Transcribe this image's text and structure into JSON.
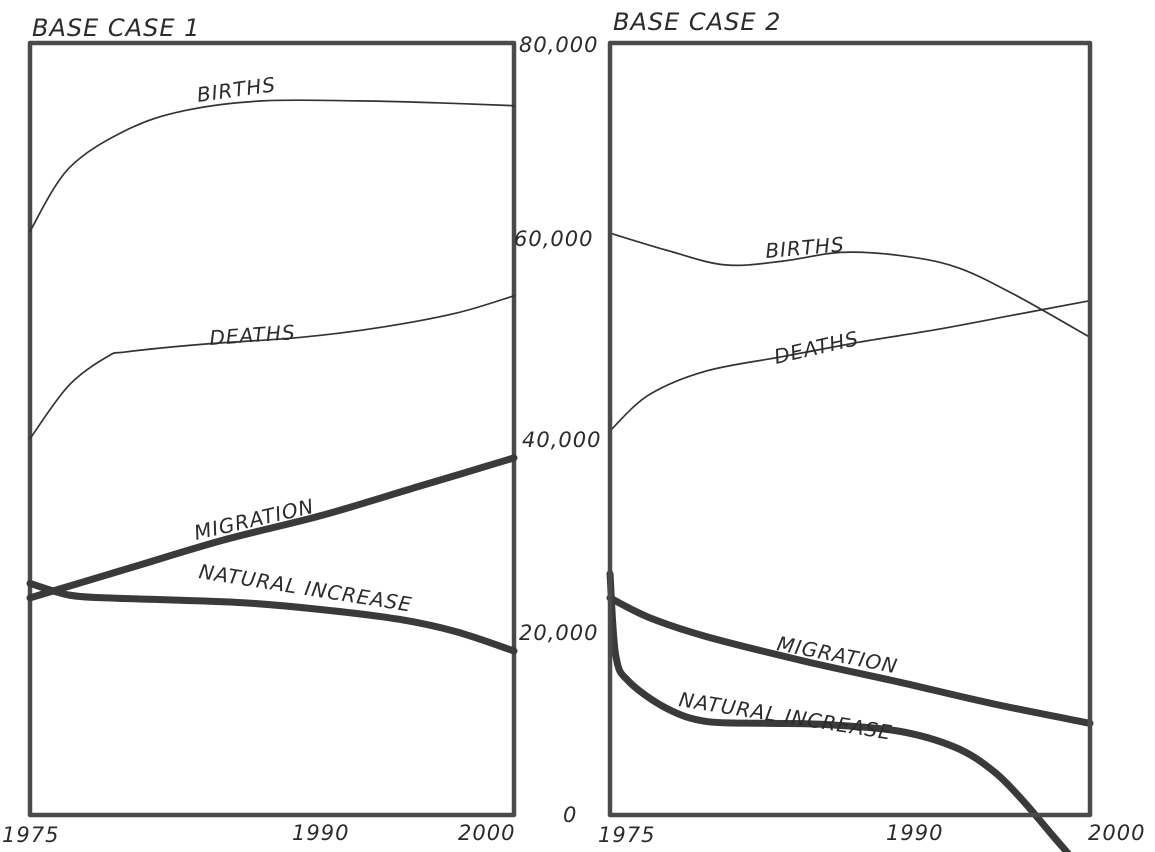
{
  "chart_data": [
    {
      "type": "line",
      "title": "BASE CASE 1",
      "xlabel": "",
      "ylabel": "",
      "x_ticks": [
        "1975",
        "1990",
        "2000"
      ],
      "xlim": [
        1975,
        2000
      ],
      "ylim": [
        0,
        80000
      ],
      "grid": false,
      "legend": "inline labels",
      "series": [
        {
          "name": "BIRTHS",
          "weight": "thin",
          "x": [
            1975,
            1977,
            1980,
            1983,
            1987,
            1992,
            1996,
            2000
          ],
          "values": [
            60500,
            67000,
            71000,
            73000,
            74000,
            74000,
            73800,
            73500
          ]
        },
        {
          "name": "DEATHS",
          "weight": "thin",
          "x": [
            1975,
            1977,
            1979,
            1980,
            1984,
            1989,
            1993,
            1997,
            2000
          ],
          "values": [
            39000,
            44500,
            47500,
            48000,
            48800,
            49500,
            50500,
            52000,
            53800
          ]
        },
        {
          "name": "MIGRATION",
          "weight": "thick",
          "x": [
            1975,
            1980,
            1985,
            1990,
            1995,
            2000
          ],
          "values": [
            22500,
            25500,
            28500,
            31000,
            34000,
            37000
          ]
        },
        {
          "name": "NATURAL INCREASE",
          "weight": "thick",
          "x": [
            1975,
            1977,
            1979,
            1982,
            1986,
            1990,
            1994,
            1997,
            2000
          ],
          "values": [
            24000,
            22800,
            22500,
            22300,
            22000,
            21300,
            20300,
            19000,
            17000
          ]
        }
      ]
    },
    {
      "type": "line",
      "title": "BASE CASE 2",
      "xlabel": "",
      "ylabel": "",
      "y_ticks": [
        "0",
        "20,000",
        "40,000",
        "60,000",
        "80,000"
      ],
      "x_ticks": [
        "1975",
        "1990",
        "2000"
      ],
      "xlim": [
        1975,
        2000
      ],
      "ylim": [
        0,
        80000
      ],
      "grid": false,
      "legend": "inline labels",
      "series": [
        {
          "name": "BIRTHS",
          "weight": "thin",
          "x": [
            1975,
            1978,
            1981,
            1984,
            1987,
            1990,
            1993,
            1996,
            2000
          ],
          "values": [
            60300,
            58500,
            57000,
            57400,
            58300,
            58000,
            56800,
            54000,
            49500
          ]
        },
        {
          "name": "DEATHS",
          "weight": "thin",
          "x": [
            1975,
            1977,
            1980,
            1984,
            1988,
            1992,
            1996,
            2000
          ],
          "values": [
            39800,
            43500,
            46000,
            47500,
            49000,
            50300,
            51800,
            53300
          ]
        },
        {
          "name": "MIGRATION",
          "weight": "thick",
          "x": [
            1975,
            1977,
            1980,
            1985,
            1990,
            1995,
            2000
          ],
          "values": [
            22500,
            20500,
            18500,
            16000,
            13800,
            11500,
            9500
          ]
        },
        {
          "name": "NATURAL INCREASE",
          "weight": "thick",
          "x": [
            1975,
            1975.3,
            1976,
            1978,
            1980,
            1983,
            1986,
            1990,
            1993,
            1995,
            1996.5,
            1998,
            1999.5,
            2000
          ],
          "values": [
            25000,
            16500,
            13800,
            11000,
            9700,
            9500,
            9400,
            8700,
            7000,
            4500,
            1500,
            -2000,
            -5500,
            -7000
          ]
        }
      ]
    }
  ]
}
